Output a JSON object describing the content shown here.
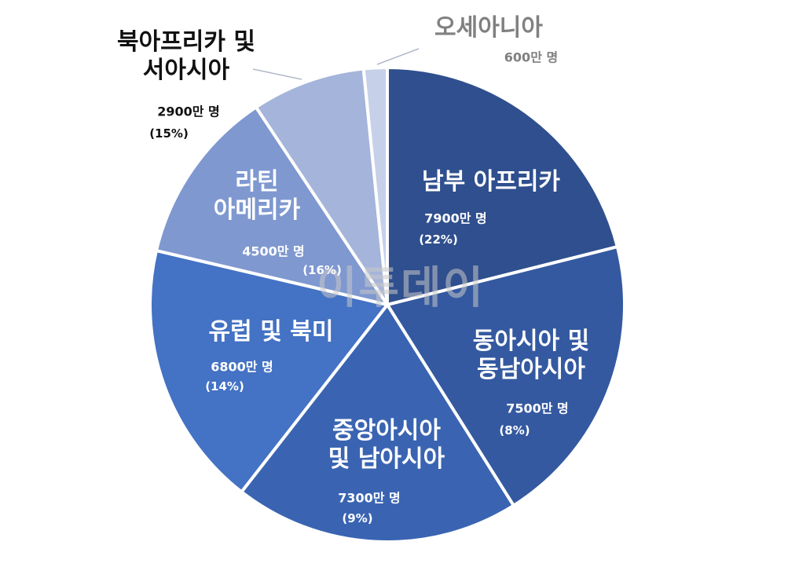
{
  "chart_data": {
    "type": "pie",
    "categories": [
      "남부 아프리카",
      "동아시아 및\n동남아시아",
      "중앙아시아\n및 남아시아",
      "유럽 및 북미",
      "라틴\n아메리카",
      "북아프리카 및\n서아시아",
      "오세아니아"
    ],
    "values": [
      7900,
      7500,
      7300,
      6800,
      4500,
      2900,
      600
    ],
    "value_labels": [
      "7900만 명",
      "7500만 명",
      "7300만 명",
      "6800만 명",
      "4500만 명",
      "2900만 명",
      "600만 명"
    ],
    "percent_labels": [
      "(22%)",
      "(8%)",
      "(9%)",
      "(14%)",
      "(16%)",
      "(15%)",
      null
    ],
    "colors": [
      "#2f4f8e",
      "#3459a0",
      "#3a64b2",
      "#4472c4",
      "#7f98d0",
      "#a5b4da",
      "#c6d0e9"
    ],
    "watermark": "이투데이"
  }
}
